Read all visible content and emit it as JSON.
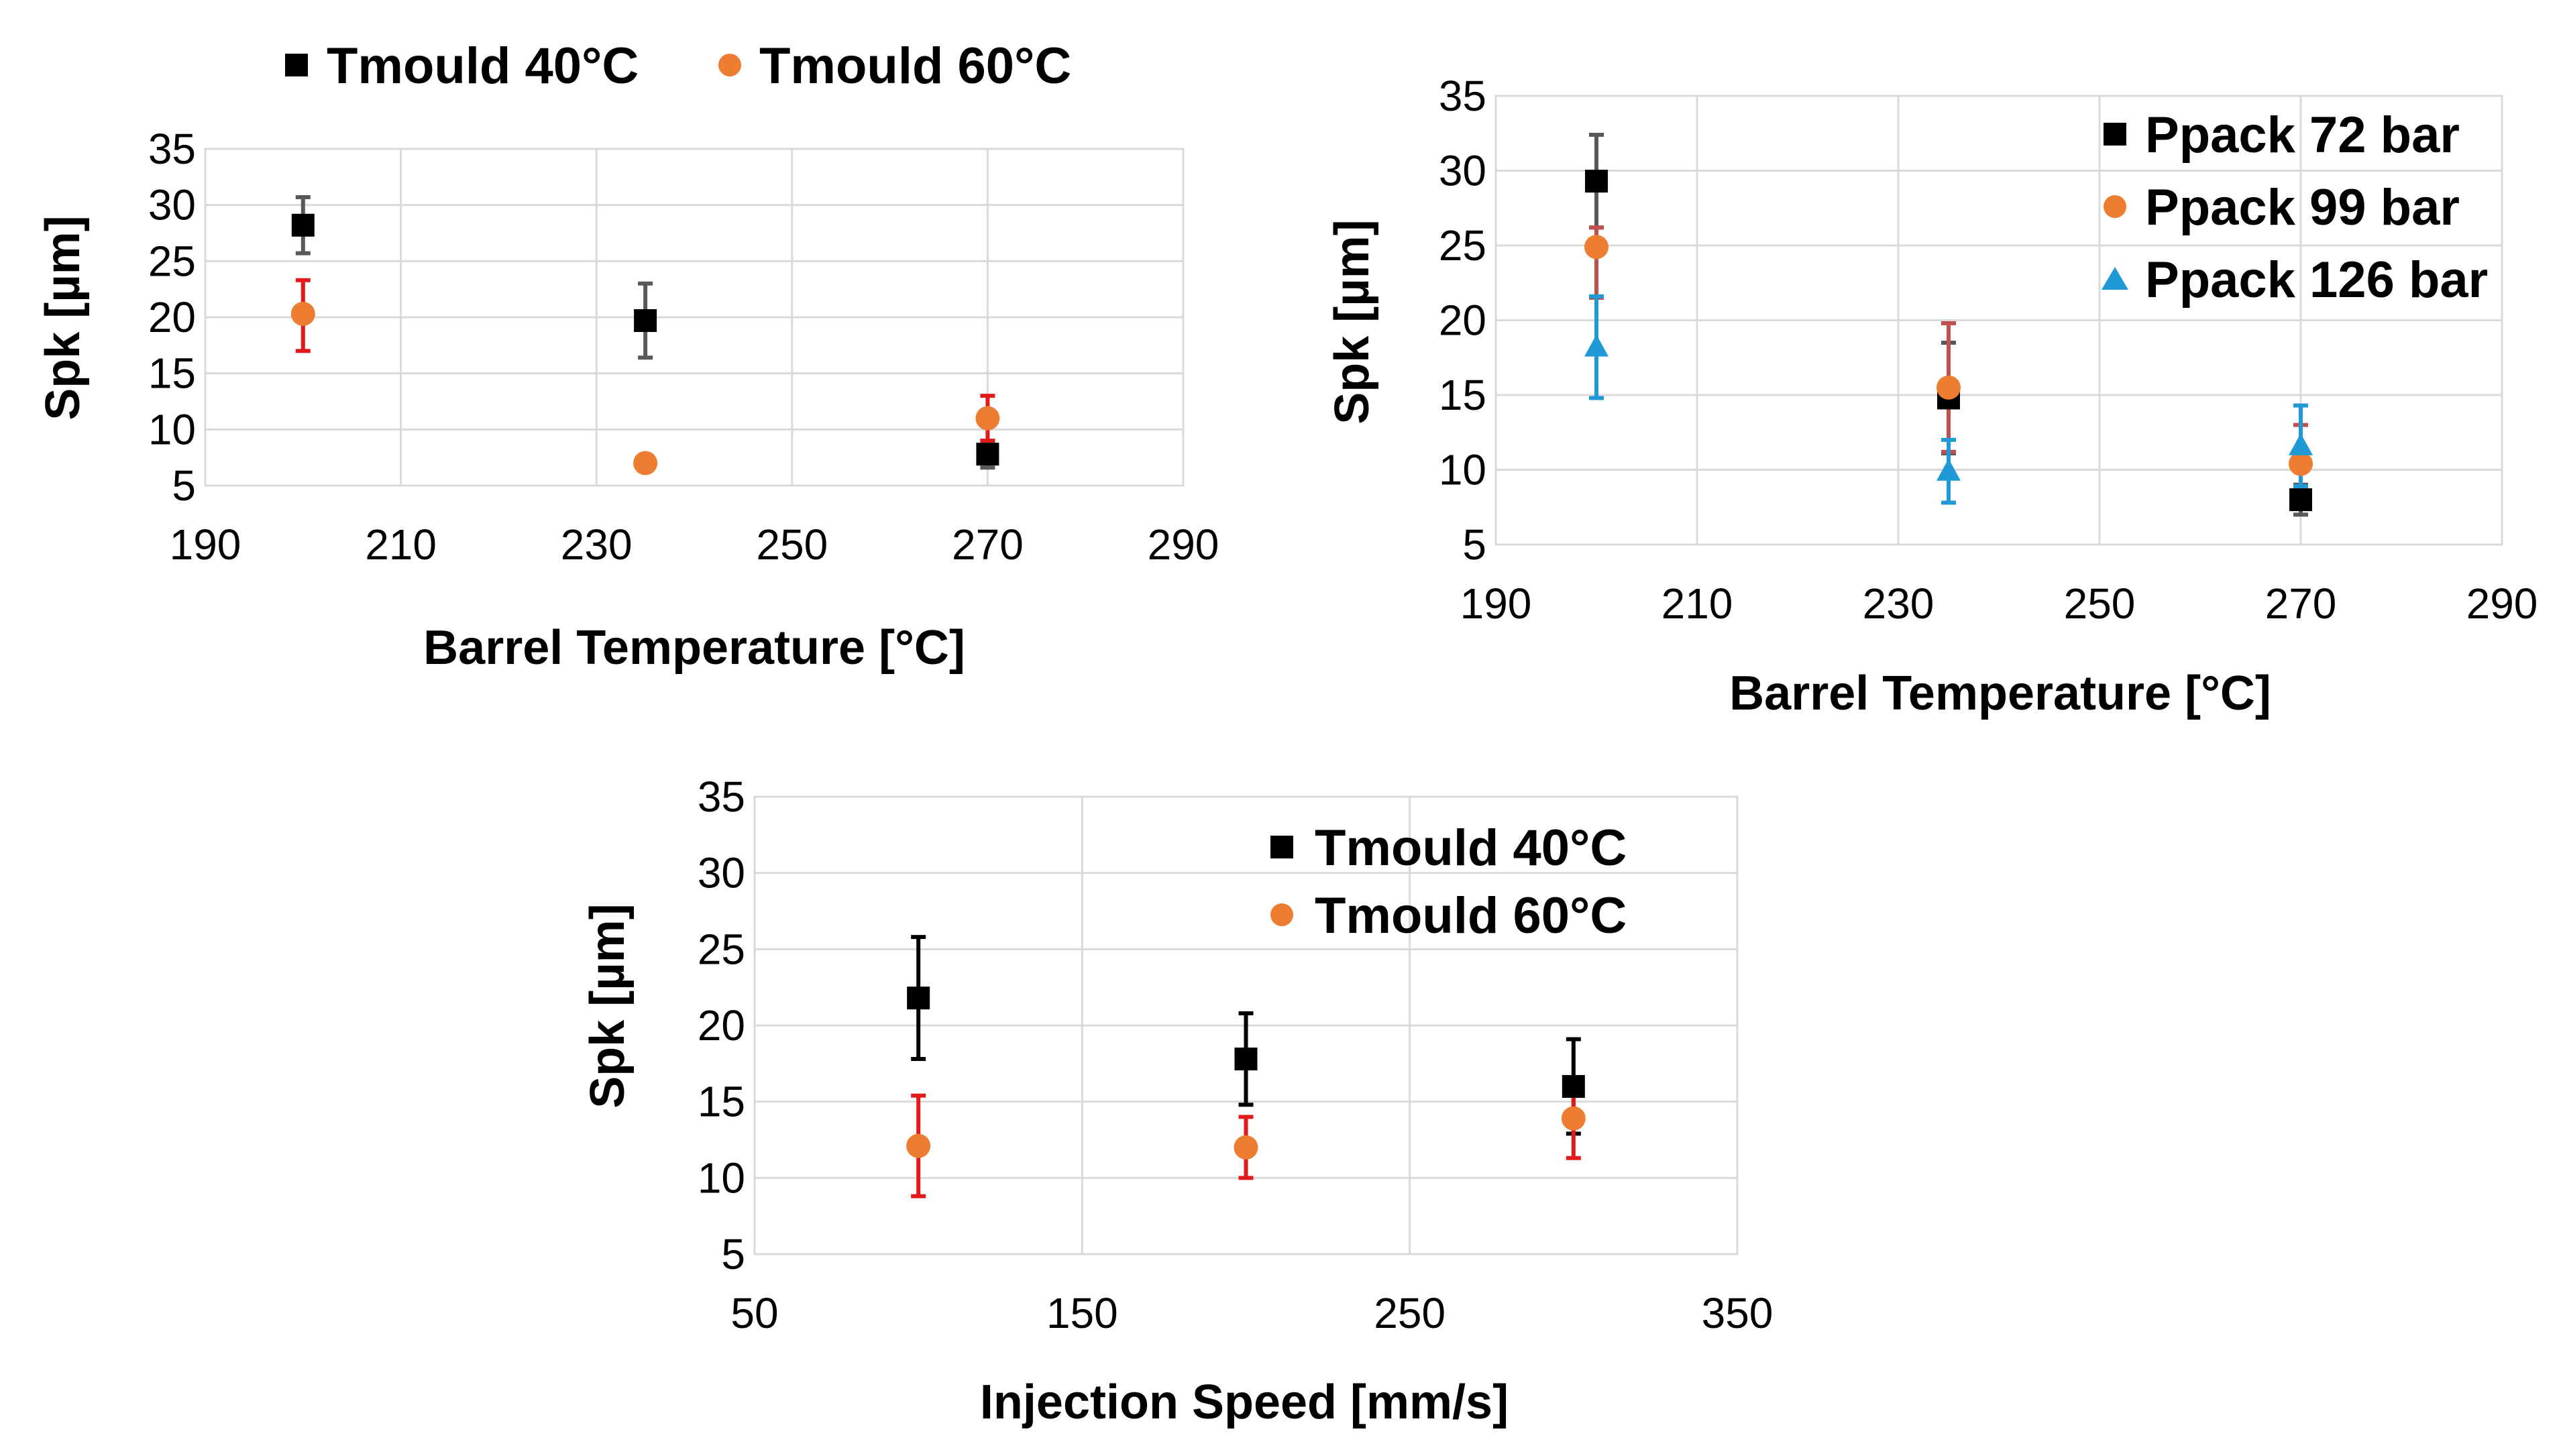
{
  "chart_data": [
    {
      "type": "scatter",
      "title": "",
      "xlabel": "Barrel Temperature [°C]",
      "ylabel": "Spk [µm]",
      "xlim": [
        190,
        290
      ],
      "ylim": [
        5,
        35
      ],
      "xticks": [
        "190",
        "210",
        "230",
        "250",
        "270",
        "290"
      ],
      "yticks": [
        "5",
        "10",
        "15",
        "20",
        "25",
        "30",
        "35"
      ],
      "grid": true,
      "legend_position": "top",
      "series": [
        {
          "name": "Tmould 40°C",
          "marker": "square",
          "color": "#000000",
          "error_color": "#595959",
          "points": [
            {
              "x": 200,
              "y": 28.2,
              "err_low": 2.5,
              "err_high": 2.5
            },
            {
              "x": 235,
              "y": 19.7,
              "err_low": 3.3,
              "err_high": 3.3
            },
            {
              "x": 270,
              "y": 7.8,
              "err_low": 1.2,
              "err_high": 1.2
            }
          ]
        },
        {
          "name": "Tmould 60°C",
          "marker": "circle",
          "color": "#ed7d31",
          "error_color": "#e31a1c",
          "points": [
            {
              "x": 200,
              "y": 20.3,
              "err_low": 3.3,
              "err_high": 3.0
            },
            {
              "x": 235,
              "y": 7.0,
              "err_low": 0.5,
              "err_high": 0.5
            },
            {
              "x": 270,
              "y": 11.0,
              "err_low": 2.0,
              "err_high": 2.0
            }
          ]
        }
      ]
    },
    {
      "type": "scatter",
      "title": "",
      "xlabel": "Barrel Temperature [°C]",
      "ylabel": "Spk [µm]",
      "xlim": [
        190,
        290
      ],
      "ylim": [
        5,
        35
      ],
      "xticks": [
        "190",
        "210",
        "230",
        "250",
        "270",
        "290"
      ],
      "yticks": [
        "5",
        "10",
        "15",
        "20",
        "25",
        "30",
        "35"
      ],
      "grid": true,
      "legend_position": "top-right",
      "series": [
        {
          "name": "Ppack 72 bar",
          "marker": "square",
          "color": "#000000",
          "error_color": "#595959",
          "points": [
            {
              "x": 200,
              "y": 29.3,
              "err_low": 3.1,
              "err_high": 3.1
            },
            {
              "x": 235,
              "y": 14.8,
              "err_low": 3.7,
              "err_high": 3.7
            },
            {
              "x": 270,
              "y": 8.0,
              "err_low": 1.0,
              "err_high": 1.0
            }
          ]
        },
        {
          "name": "Ppack 99 bar",
          "marker": "circle",
          "color": "#ed7d31",
          "error_color": "#c0504d",
          "points": [
            {
              "x": 200,
              "y": 24.9,
              "err_low": 3.4,
              "err_high": 1.3
            },
            {
              "x": 235,
              "y": 15.5,
              "err_low": 4.3,
              "err_high": 4.3
            },
            {
              "x": 270,
              "y": 10.4,
              "err_low": 2.6,
              "err_high": 2.6
            }
          ]
        },
        {
          "name": "Ppack 126 bar",
          "marker": "triangle",
          "color": "#1f9ad6",
          "error_color": "#1f9ad6",
          "points": [
            {
              "x": 200,
              "y": 18.2,
              "err_low": 3.4,
              "err_high": 3.4
            },
            {
              "x": 235,
              "y": 9.9,
              "err_low": 2.1,
              "err_high": 2.1
            },
            {
              "x": 270,
              "y": 11.6,
              "err_low": 2.7,
              "err_high": 2.7
            }
          ]
        }
      ]
    },
    {
      "type": "scatter",
      "title": "",
      "xlabel": "Injection Speed  [mm/s]",
      "ylabel": "Spk [µm]",
      "xlim": [
        50,
        350
      ],
      "ylim": [
        5,
        35
      ],
      "xticks": [
        "50",
        "150",
        "250",
        "350"
      ],
      "yticks": [
        "5",
        "10",
        "15",
        "20",
        "25",
        "30",
        "35"
      ],
      "grid": true,
      "legend_position": "top-right",
      "series": [
        {
          "name": "Tmould 40°C",
          "marker": "square",
          "color": "#000000",
          "error_color": "#000000",
          "points": [
            {
              "x": 100,
              "y": 21.8,
              "err_low": 4.0,
              "err_high": 4.0
            },
            {
              "x": 200,
              "y": 17.8,
              "err_low": 3.0,
              "err_high": 3.0
            },
            {
              "x": 300,
              "y": 16.0,
              "err_low": 3.1,
              "err_high": 3.1
            }
          ]
        },
        {
          "name": "Tmould 60°C",
          "marker": "circle",
          "color": "#ed7d31",
          "error_color": "#e31a1c",
          "points": [
            {
              "x": 100,
              "y": 12.1,
              "err_low": 3.3,
              "err_high": 3.3
            },
            {
              "x": 200,
              "y": 12.0,
              "err_low": 2.0,
              "err_high": 2.0
            },
            {
              "x": 300,
              "y": 13.9,
              "err_low": 2.6,
              "err_high": 2.6
            }
          ]
        }
      ]
    }
  ]
}
